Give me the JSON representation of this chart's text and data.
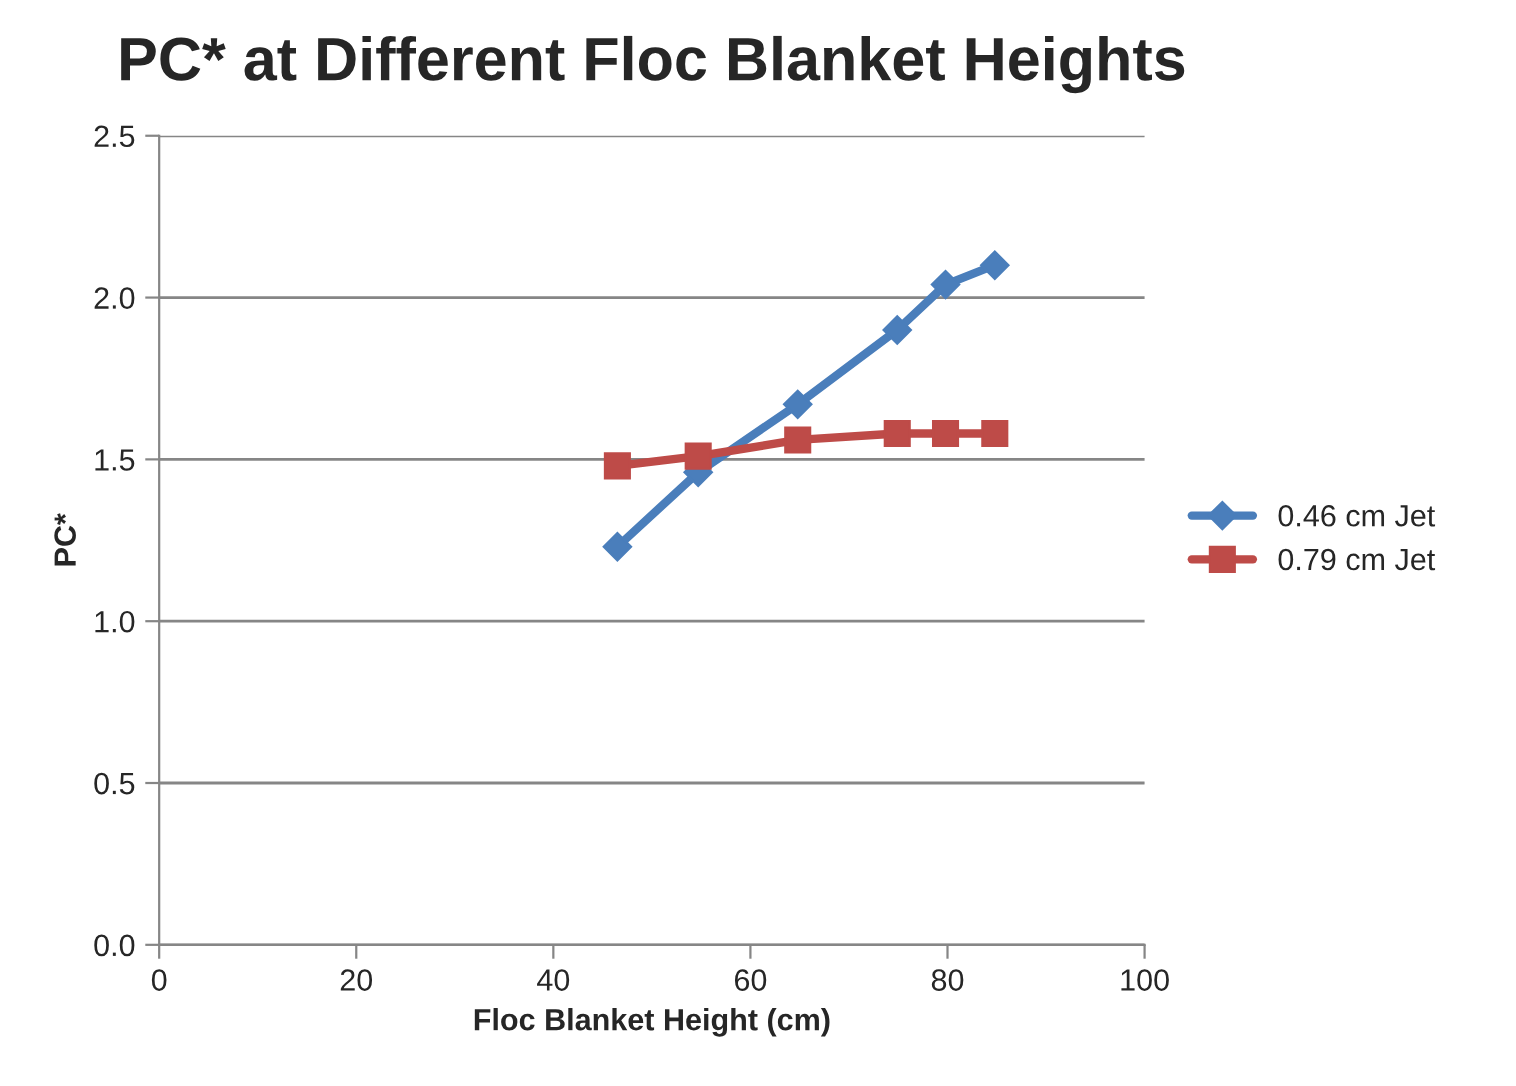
{
  "chart_data": {
    "type": "line",
    "title": "PC* at Different Floc Blanket Heights",
    "xlabel": "Floc Blanket Height (cm)",
    "ylabel": "PC*",
    "x": [
      46.5,
      54.7,
      64.8,
      74.9,
      79.8,
      84.8
    ],
    "series": [
      {
        "name": "0.46 cm Jet",
        "color": "#4a7ebb",
        "marker": "diamond",
        "values": [
          1.23,
          1.46,
          1.67,
          1.9,
          2.04,
          2.1
        ]
      },
      {
        "name": "0.79 cm Jet",
        "color": "#be4b48",
        "marker": "square",
        "values": [
          1.48,
          1.51,
          1.56,
          1.58,
          1.58,
          1.58
        ]
      }
    ],
    "xlim": [
      0,
      100
    ],
    "xticks": [
      0,
      20,
      40,
      60,
      80,
      100
    ],
    "ylim": [
      0,
      2.5
    ],
    "yticks": [
      {
        "value": 0,
        "label": "0.0"
      },
      0.5,
      {
        "value": 1,
        "label": "1.0"
      },
      1.5,
      {
        "value": 2,
        "label": "2.0"
      },
      2.5
    ],
    "grid": "y",
    "legend": "right",
    "line_style": "solid"
  }
}
